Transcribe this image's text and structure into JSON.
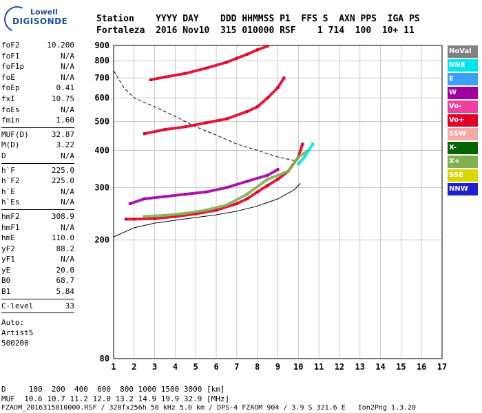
{
  "logo": {
    "line1": "Lowell",
    "line2": "DIGISONDE"
  },
  "header": {
    "row1": "Station    YYYY DAY    DDD HHMMSS P1  FFS S  AXN PPS  IGA PS",
    "row2": "Fortaleza  2016 Nov10  315 010000 RSF    1 714  100  10+ 11"
  },
  "params": {
    "group1": [
      {
        "k": "foF2",
        "v": "10.200"
      },
      {
        "k": "foF1",
        "v": "N/A"
      },
      {
        "k": "foF1p",
        "v": "N/A"
      },
      {
        "k": "foE",
        "v": "N/A"
      },
      {
        "k": "foEp",
        "v": "0.41"
      },
      {
        "k": "fxI",
        "v": "10.75"
      },
      {
        "k": "foEs",
        "v": "N/A"
      },
      {
        "k": "fmin",
        "v": "1.60"
      }
    ],
    "group2": [
      {
        "k": "MUF(D)",
        "v": "32.87"
      },
      {
        "k": "M(D)",
        "v": "3.22"
      },
      {
        "k": "D",
        "v": "N/A"
      }
    ],
    "group3": [
      {
        "k": "h`F",
        "v": "225.0"
      },
      {
        "k": "h`F2",
        "v": "225.0"
      },
      {
        "k": "h`E",
        "v": "N/A"
      },
      {
        "k": "h`Es",
        "v": "N/A"
      }
    ],
    "group4": [
      {
        "k": "hmF2",
        "v": "308.9"
      },
      {
        "k": "hmF1",
        "v": "N/A"
      },
      {
        "k": "hmE",
        "v": "110.0"
      },
      {
        "k": "yF2",
        "v": "88.2"
      },
      {
        "k": "yF1",
        "v": "N/A"
      },
      {
        "k": "yE",
        "v": "20.0"
      },
      {
        "k": "B0",
        "v": "68.7"
      },
      {
        "k": "B1",
        "v": "5.84"
      }
    ],
    "group5": [
      {
        "k": "C-level",
        "v": "33"
      }
    ],
    "auto": [
      "Auto:",
      "Artist5",
      "500200"
    ]
  },
  "footer": {
    "line1": "D     100  200  400  600  800 1000 1500 3000 [km]",
    "line2": "MUF  10.6 10.7 11.2 12.0 13.2 14.9 19.9 32.9 [MHz]",
    "line3": "FZAOM_2016315010000.RSF / 320fx256h 50 kHz 5.0 km / DPS-4 FZAOM 904 / 3.9 S 321.6 E   Ion2Png 1.3.20"
  },
  "legend": [
    {
      "label": "NoVal",
      "color": "#808080"
    },
    {
      "label": "NNE",
      "color": "#00e5ee"
    },
    {
      "label": "E",
      "color": "#3aa0ff"
    },
    {
      "label": "W",
      "color": "#a000a0"
    },
    {
      "label": "Vo-",
      "color": "#ee40a0"
    },
    {
      "label": "Vo+",
      "color": "#e00028"
    },
    {
      "label": "SSW",
      "color": "#f4a8a8"
    },
    {
      "label": "X-",
      "color": "#006400"
    },
    {
      "label": "X+",
      "color": "#80b050"
    },
    {
      "label": "SSE",
      "color": "#d8d800"
    },
    {
      "label": "NNW",
      "color": "#2020d0"
    }
  ],
  "chart_data": {
    "type": "scatter",
    "xlabel": "",
    "ylabel": "",
    "xlim": [
      1,
      17
    ],
    "ylim": [
      80,
      900
    ],
    "x_scale": "linear",
    "y_scale": "log",
    "grid": true,
    "legend_placement": "right",
    "x_ticks": [
      "1",
      "2",
      "3",
      "4",
      "5",
      "6",
      "7",
      "8",
      "9",
      "10",
      "11",
      "12",
      "13",
      "14",
      "15",
      "16",
      "17"
    ],
    "y_ticks": [
      "80",
      "200",
      "300",
      "400",
      "500",
      "600",
      "700",
      "800",
      "900"
    ],
    "y_tick_values": [
      80,
      200,
      300,
      400,
      500,
      600,
      700,
      800,
      900
    ],
    "series": [
      {
        "name": "Vo+",
        "color": "#e00028",
        "x": [
          1.6,
          2,
          3,
          4,
          5,
          6,
          7,
          7.5,
          8,
          8.5,
          9,
          9.5,
          10,
          10.2
        ],
        "y": [
          235,
          235,
          236,
          240,
          245,
          252,
          265,
          275,
          290,
          305,
          320,
          340,
          380,
          420
        ]
      },
      {
        "name": "X+",
        "color": "#80b050",
        "x": [
          2.5,
          3.5,
          4.5,
          5.5,
          6.5,
          7.5,
          8.5,
          9.5,
          10,
          10.5
        ],
        "y": [
          240,
          242,
          246,
          252,
          262,
          285,
          320,
          340,
          380,
          400
        ]
      },
      {
        "name": "W",
        "color": "#a000a0",
        "x": [
          1.8,
          2.5,
          3.5,
          4.5,
          5.5,
          6.5,
          7.5,
          8.5,
          9
        ],
        "y": [
          265,
          275,
          280,
          285,
          290,
          300,
          315,
          330,
          345
        ]
      },
      {
        "name": "NNE",
        "color": "#00e5ee",
        "x": [
          10,
          10.3,
          10.5,
          10.7
        ],
        "y": [
          360,
          380,
          400,
          420
        ]
      },
      {
        "name": "Vo+ 2nd",
        "color": "#e00028",
        "x": [
          2.5,
          3.5,
          4.5,
          5.5,
          6.5,
          7.5,
          8,
          8.5,
          9,
          9.3
        ],
        "y": [
          455,
          470,
          480,
          495,
          510,
          540,
          560,
          600,
          650,
          700
        ]
      },
      {
        "name": "Vo+ 3rd",
        "color": "#e00028",
        "x": [
          2.8,
          3.5,
          4.5,
          5.5,
          6.5,
          7,
          7.5,
          8,
          8.5
        ],
        "y": [
          690,
          705,
          725,
          755,
          790,
          815,
          840,
          870,
          895
        ]
      }
    ],
    "reference_curves": [
      {
        "name": "dashed",
        "x": [
          1,
          1.5,
          2,
          3,
          4,
          5,
          6,
          7,
          8,
          9,
          9.8
        ],
        "y": [
          740,
          650,
          600,
          560,
          520,
          480,
          450,
          420,
          400,
          380,
          370
        ]
      },
      {
        "name": "solid",
        "x": [
          1,
          2,
          3,
          4,
          5,
          6,
          7,
          8,
          9,
          9.8,
          10.1
        ],
        "y": [
          205,
          220,
          228,
          233,
          238,
          243,
          250,
          260,
          275,
          295,
          310
        ]
      }
    ]
  }
}
